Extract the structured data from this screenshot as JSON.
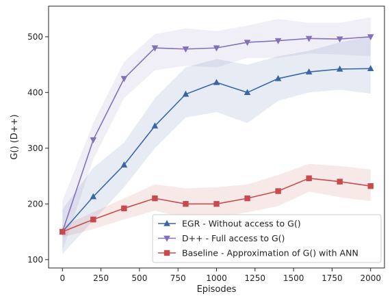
{
  "chart_data": {
    "type": "line",
    "xlabel": "Episodes",
    "ylabel": "G() (D++)",
    "xlim": [
      -90,
      2090
    ],
    "ylim": [
      85,
      555
    ],
    "xticks": [
      0,
      250,
      500,
      750,
      1000,
      1250,
      1500,
      1750,
      2000
    ],
    "yticks": [
      100,
      200,
      300,
      400,
      500
    ],
    "grid": false,
    "legend_position": "lower-right",
    "x": [
      0,
      200,
      400,
      600,
      800,
      1000,
      1200,
      1400,
      1600,
      1800,
      2000
    ],
    "series": [
      {
        "name": "EGR - Without access to G()",
        "color": "#3a66a8",
        "marker": "triangle-up",
        "values": [
          150,
          213,
          270,
          340,
          397,
          418,
          400,
          425,
          437,
          442,
          443
        ],
        "upper": [
          190,
          265,
          310,
          390,
          445,
          460,
          450,
          465,
          475,
          490,
          500
        ],
        "lower": [
          110,
          170,
          230,
          300,
          355,
          365,
          345,
          385,
          400,
          405,
          398
        ]
      },
      {
        "name": "D++ - Full access to G()",
        "color": "#8470b8",
        "marker": "triangle-down",
        "values": [
          150,
          315,
          425,
          480,
          478,
          480,
          490,
          493,
          497,
          496,
          500
        ],
        "upper": [
          205,
          345,
          455,
          505,
          515,
          510,
          520,
          532,
          525,
          525,
          535
        ],
        "lower": [
          115,
          280,
          390,
          440,
          448,
          445,
          462,
          462,
          470,
          468,
          465
        ]
      },
      {
        "name": "Baseline - Approximation of G() with ANN",
        "color": "#c94a4e",
        "marker": "square",
        "values": [
          150,
          172,
          192,
          210,
          200,
          200,
          210,
          223,
          246,
          240,
          232
        ],
        "upper": [
          160,
          185,
          210,
          235,
          228,
          230,
          235,
          252,
          272,
          268,
          262
        ],
        "lower": [
          140,
          155,
          172,
          188,
          175,
          175,
          185,
          196,
          222,
          212,
          205
        ]
      }
    ]
  }
}
